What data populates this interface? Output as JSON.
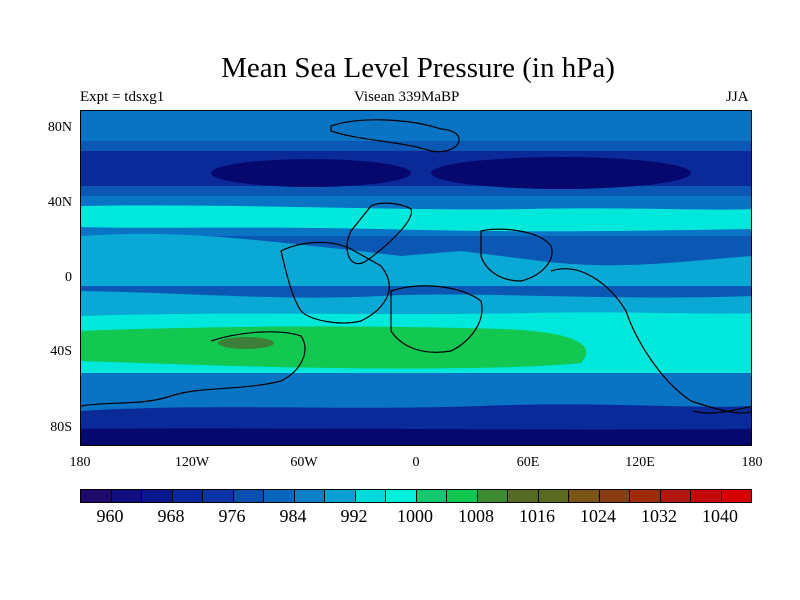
{
  "title": "Mean Sea Level Pressure (in hPa)",
  "experiment": "Expt = tdsxg1",
  "period": "Visean 339MaBP",
  "season": "JJA",
  "colors": {
    "darkest": "#06086e",
    "dark": "#0b2a9a",
    "mid": "#0a57b4",
    "light": "#0a74c4",
    "cyanblue": "#0aa8d4",
    "cyan": "#00e8dc",
    "green": "#12c850",
    "olive": "#3d7f38",
    "coast": "#000000"
  },
  "chart_data": {
    "type": "heatmap",
    "title": "Mean Sea Level Pressure (in hPa)",
    "x_ticks": [
      "180",
      "120W",
      "60W",
      "0",
      "60E",
      "120E",
      "180"
    ],
    "y_ticks": [
      "80N",
      "40N",
      "0",
      "40S",
      "80S"
    ],
    "colorbar": {
      "labels": [
        "960",
        "968",
        "976",
        "984",
        "992",
        "1000",
        "1008",
        "1016",
        "1024",
        "1032",
        "1040"
      ],
      "colors": [
        "#1d0a6a",
        "#100e80",
        "#0a1890",
        "#0a289d",
        "#0a34a6",
        "#0a50b4",
        "#0a66bd",
        "#0a80c8",
        "#0aa0d4",
        "#00d8dc",
        "#00f0dc",
        "#14c870",
        "#10c850",
        "#3d8a30",
        "#556b22",
        "#5a6a20",
        "#7a5518",
        "#8c3c12",
        "#a02a0a",
        "#b01810",
        "#c40a0a",
        "#d40000"
      ]
    }
  }
}
